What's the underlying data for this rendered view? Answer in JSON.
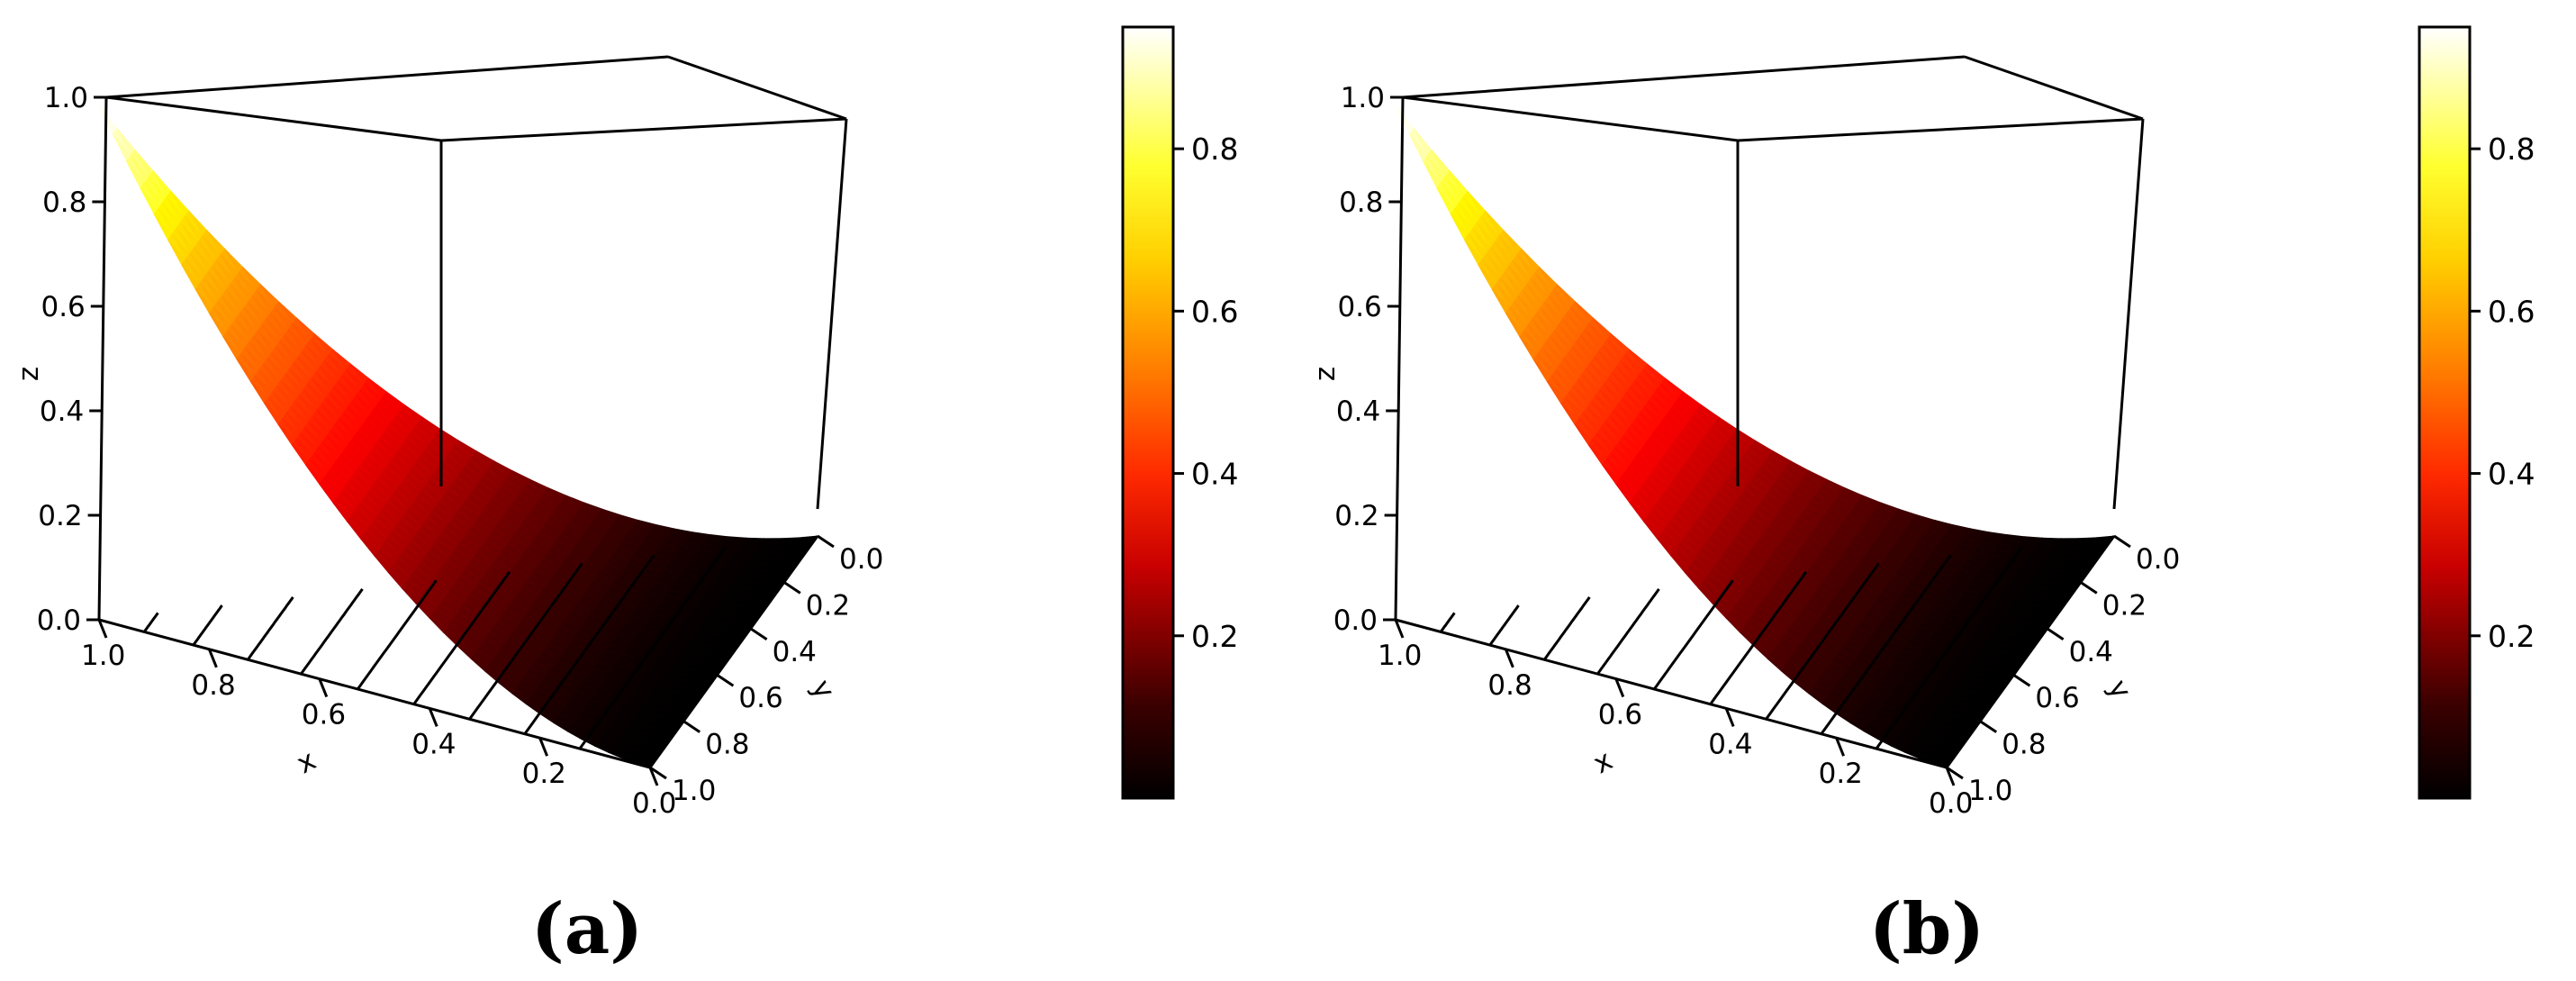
{
  "chart_data": [
    {
      "type": "surface3d",
      "panel_label": "(a)",
      "axes": {
        "x": {
          "label": "x",
          "range": [
            0.0,
            1.0
          ],
          "ticks": [
            "1.0",
            "0.8",
            "0.6",
            "0.4",
            "0.2",
            "0.0"
          ]
        },
        "y": {
          "label": "y",
          "range": [
            0.0,
            1.0
          ],
          "ticks": [
            "0.0",
            "0.2",
            "0.4",
            "0.6",
            "0.8",
            "1.0"
          ]
        },
        "z": {
          "label": "z",
          "range": [
            0.0,
            1.0
          ],
          "ticks": [
            "0.0",
            "0.2",
            "0.4",
            "0.6",
            "0.8",
            "1.0"
          ]
        }
      },
      "domain": "simplex x + y <= 1",
      "surface_corners": [
        {
          "x": 0,
          "y": 0,
          "z": 1.0
        },
        {
          "x": 1,
          "y": 0,
          "z": 0.0
        },
        {
          "x": 0,
          "y": 1,
          "z": 0.0
        }
      ],
      "colormap": "heat",
      "colorbar": {
        "range": [
          0.0,
          0.95
        ],
        "ticks": [
          "0.2",
          "0.4",
          "0.6",
          "0.8"
        ]
      },
      "grid": false
    },
    {
      "type": "surface3d",
      "panel_label": "(b)",
      "axes": {
        "x": {
          "label": "x",
          "range": [
            0.0,
            1.0
          ],
          "ticks": [
            "1.0",
            "0.8",
            "0.6",
            "0.4",
            "0.2",
            "0.0"
          ]
        },
        "y": {
          "label": "y",
          "range": [
            0.0,
            1.0
          ],
          "ticks": [
            "0.0",
            "0.2",
            "0.4",
            "0.6",
            "0.8",
            "1.0"
          ]
        },
        "z": {
          "label": "z",
          "range": [
            0.0,
            1.0
          ],
          "ticks": [
            "0.0",
            "0.2",
            "0.4",
            "0.6",
            "0.8",
            "1.0"
          ]
        }
      },
      "domain": "simplex x + y <= 1",
      "surface_corners": [
        {
          "x": 0,
          "y": 0,
          "z": 1.0
        },
        {
          "x": 1,
          "y": 0,
          "z": 0.0
        },
        {
          "x": 0,
          "y": 1,
          "z": 0.0
        }
      ],
      "colormap": "heat",
      "colorbar": {
        "range": [
          0.0,
          0.95
        ],
        "ticks": [
          "0.2",
          "0.4",
          "0.6",
          "0.8"
        ]
      },
      "grid": false
    }
  ]
}
